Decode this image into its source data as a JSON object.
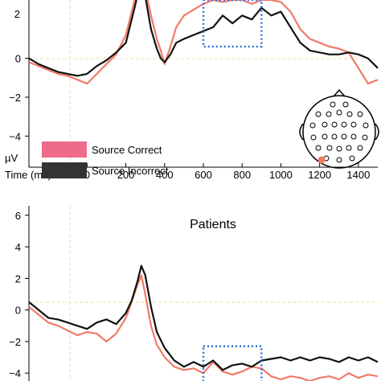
{
  "colors": {
    "correct": "#f07a68",
    "correct_legend": "#ef6b8a",
    "incorrect": "#111111",
    "incorrect_legend": "#333333",
    "window": "#2a6fd6",
    "zero_line": "#e9e2a0",
    "electrode_highlight": "#f07a68"
  },
  "chart_data": [
    {
      "type": "line",
      "title": "",
      "xlabel": "Time (ms)",
      "ylabel": "µV",
      "xlim": [
        -300,
        1500
      ],
      "ylim": [
        -5.6,
        3.0
      ],
      "y_ticks": [
        0,
        -2,
        -4
      ],
      "y_tick_labels": [
        "0",
        "−2",
        "−4"
      ],
      "partial_top_tick": "2",
      "x_ticks": [
        0,
        200,
        400,
        600,
        800,
        1000,
        1200,
        1400
      ],
      "x_tick_labels": [
        "0",
        "200",
        "400",
        "600",
        "800",
        "1000",
        "1200",
        "1400"
      ],
      "legend": {
        "placement": "lower-left",
        "entries": [
          "Source Correct",
          "Source Incorrect"
        ]
      },
      "analysis_window": {
        "x": [
          600,
          900
        ],
        "y": [
          0.6,
          3.0
        ]
      },
      "head_map": "top-view electrode layout, one highlighted electrode",
      "series": [
        {
          "name": "Source Correct",
          "x": [
            -300,
            -250,
            -200,
            -150,
            -100,
            -50,
            0,
            50,
            100,
            150,
            200,
            250,
            280,
            300,
            330,
            360,
            380,
            400,
            430,
            460,
            500,
            550,
            600,
            650,
            700,
            750,
            800,
            850,
            900,
            950,
            1000,
            1050,
            1100,
            1150,
            1200,
            1250,
            1300,
            1350,
            1400,
            1450,
            1500
          ],
          "values": [
            -0.2,
            -0.4,
            -0.6,
            -0.8,
            -0.9,
            -1.1,
            -1.3,
            -0.8,
            -0.3,
            0.2,
            1.2,
            3.2,
            4.0,
            3.5,
            2.2,
            1.0,
            0.4,
            -0.3,
            0.6,
            1.6,
            2.2,
            2.5,
            2.8,
            3.0,
            2.9,
            3.0,
            3.0,
            2.8,
            3.0,
            3.0,
            2.9,
            2.4,
            1.5,
            1.0,
            0.8,
            0.6,
            0.5,
            0.3,
            -0.5,
            -1.3,
            -1.1
          ]
        },
        {
          "name": "Source Incorrect",
          "x": [
            -300,
            -250,
            -200,
            -150,
            -100,
            -50,
            0,
            50,
            100,
            150,
            200,
            250,
            280,
            300,
            330,
            360,
            380,
            400,
            430,
            460,
            500,
            550,
            600,
            650,
            700,
            750,
            800,
            850,
            900,
            950,
            1000,
            1050,
            1100,
            1150,
            1200,
            1250,
            1300,
            1350,
            1400,
            1450,
            1500
          ],
          "values": [
            0.0,
            -0.3,
            -0.5,
            -0.7,
            -0.8,
            -0.9,
            -0.8,
            -0.4,
            -0.1,
            0.3,
            0.8,
            2.8,
            4.2,
            3.2,
            1.5,
            0.5,
            0.0,
            -0.2,
            0.2,
            0.8,
            1.0,
            1.2,
            1.4,
            1.6,
            2.2,
            1.8,
            2.2,
            2.0,
            2.6,
            2.2,
            2.4,
            1.6,
            0.8,
            0.4,
            0.3,
            0.2,
            0.2,
            0.3,
            0.2,
            0.0,
            -0.5
          ]
        }
      ]
    },
    {
      "type": "line",
      "title": "Patients",
      "xlabel": "",
      "ylabel": "",
      "xlim": [
        -300,
        1500
      ],
      "ylim": [
        -4.5,
        6.6
      ],
      "y_ticks": [
        6,
        4,
        2,
        0,
        -2,
        -4
      ],
      "y_tick_labels": [
        "6",
        "4",
        "2",
        "0",
        "−2",
        "−4"
      ],
      "analysis_window": {
        "x": [
          600,
          900
        ],
        "y": [
          -4.7,
          -2.3
        ]
      },
      "series": [
        {
          "name": "Source Correct",
          "x": [
            -300,
            -250,
            -200,
            -150,
            -100,
            -50,
            0,
            50,
            100,
            150,
            200,
            230,
            260,
            280,
            300,
            330,
            360,
            400,
            450,
            500,
            550,
            600,
            650,
            700,
            750,
            800,
            850,
            900,
            950,
            1000,
            1050,
            1100,
            1150,
            1200,
            1250,
            1300,
            1350,
            1400,
            1450,
            1500
          ],
          "values": [
            0.2,
            -0.3,
            -0.8,
            -1.0,
            -1.3,
            -1.6,
            -1.4,
            -1.5,
            -2.0,
            -1.5,
            -0.5,
            0.5,
            1.6,
            2.2,
            1.0,
            -1.0,
            -2.2,
            -3.0,
            -3.6,
            -3.8,
            -3.7,
            -4.0,
            -3.3,
            -3.9,
            -4.1,
            -3.9,
            -3.6,
            -3.7,
            -4.2,
            -4.4,
            -4.2,
            -4.3,
            -4.5,
            -4.3,
            -4.2,
            -4.4,
            -4.0,
            -4.3,
            -4.1,
            -4.2
          ]
        },
        {
          "name": "Source Incorrect",
          "x": [
            -300,
            -250,
            -200,
            -150,
            -100,
            -50,
            0,
            50,
            100,
            150,
            200,
            230,
            260,
            280,
            300,
            330,
            360,
            400,
            450,
            500,
            550,
            600,
            650,
            700,
            750,
            800,
            850,
            900,
            950,
            1000,
            1050,
            1100,
            1150,
            1200,
            1250,
            1300,
            1350,
            1400,
            1450,
            1500
          ],
          "values": [
            0.5,
            0.0,
            -0.5,
            -0.6,
            -0.8,
            -1.0,
            -1.2,
            -0.8,
            -0.6,
            -0.9,
            -0.2,
            0.6,
            1.8,
            2.8,
            2.2,
            0.2,
            -1.4,
            -2.4,
            -3.2,
            -3.6,
            -3.3,
            -3.6,
            -3.2,
            -3.8,
            -3.5,
            -3.4,
            -3.6,
            -3.2,
            -3.1,
            -3.0,
            -3.2,
            -3.0,
            -3.2,
            -3.0,
            -3.1,
            -3.3,
            -3.0,
            -3.2,
            -3.0,
            -3.3
          ]
        }
      ]
    }
  ]
}
